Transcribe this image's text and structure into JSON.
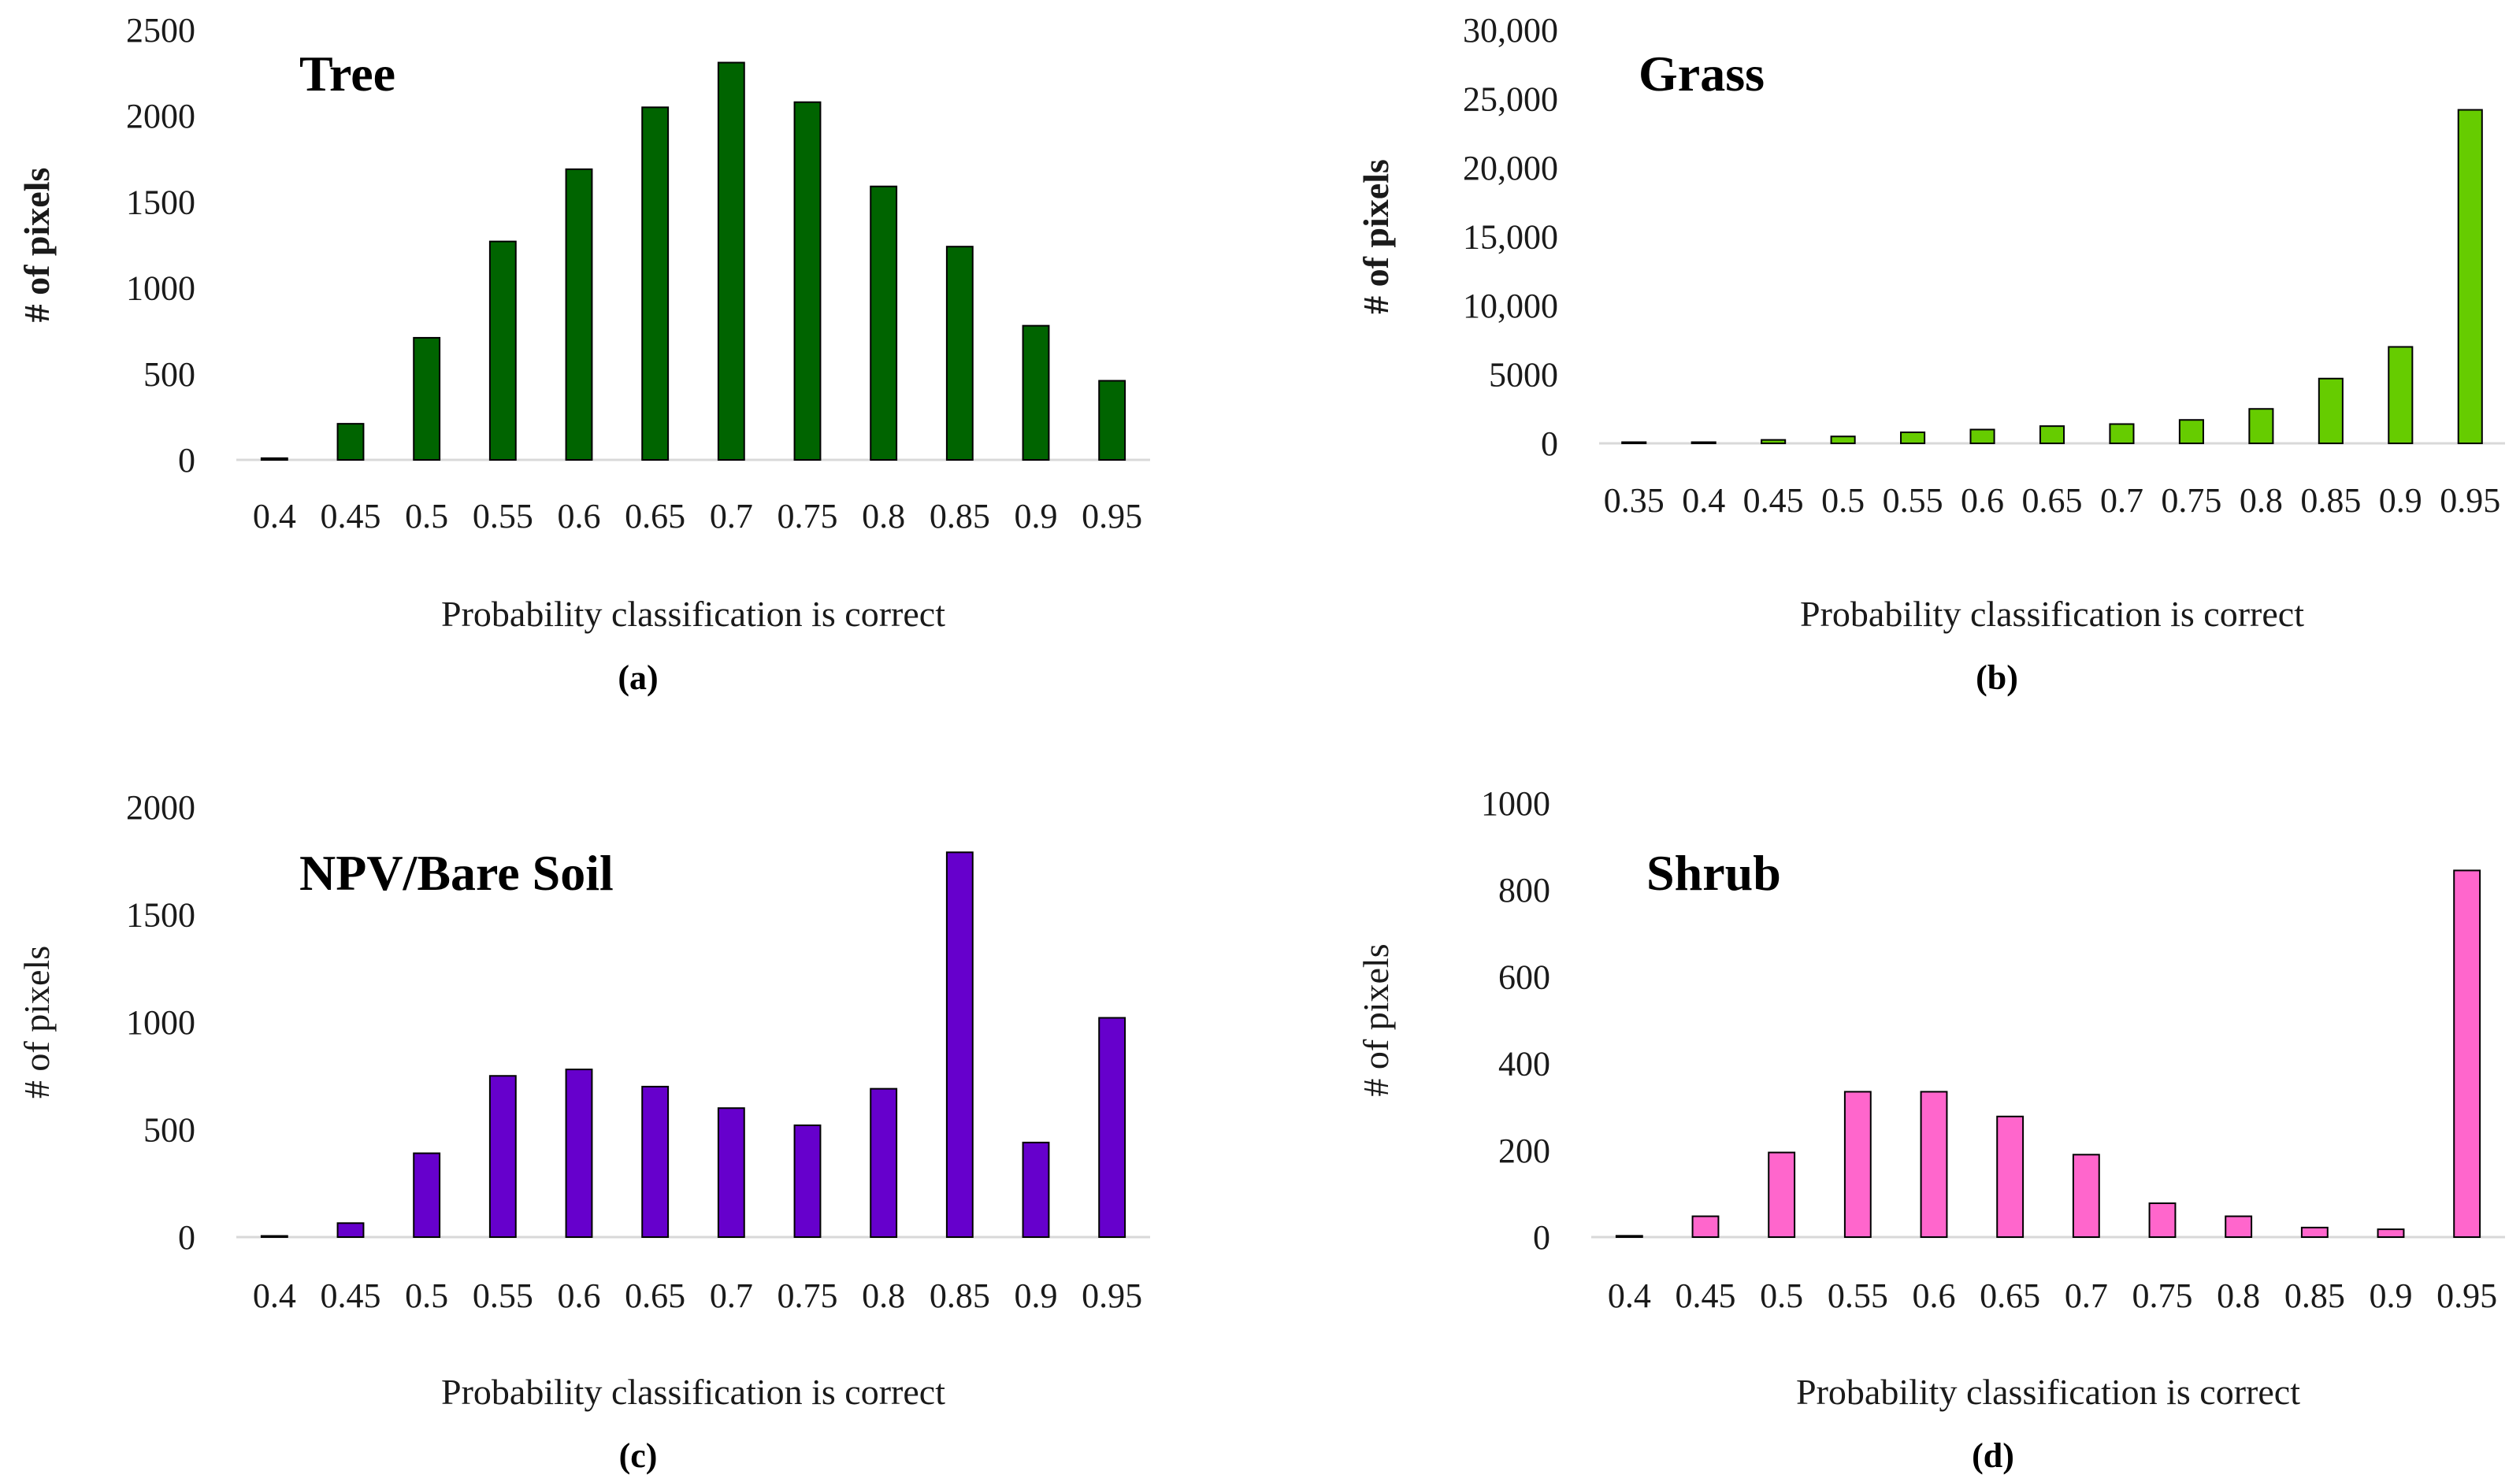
{
  "chart_data": [
    {
      "type": "bar",
      "title": "Tree",
      "panel_label": "(a)",
      "xlabel": "Probability classification is correct",
      "ylabel": "# of pixels",
      "ylabel_bold": true,
      "ylim": [
        0,
        2500
      ],
      "yticks": [
        0,
        500,
        1000,
        1500,
        2000,
        2500
      ],
      "ytick_labels": [
        "0",
        "500",
        "1000",
        "1500",
        "2000",
        "2500"
      ],
      "categories": [
        "0.4",
        "0.45",
        "0.5",
        "0.55",
        "0.6",
        "0.65",
        "0.7",
        "0.75",
        "0.8",
        "0.85",
        "0.9",
        "0.95"
      ],
      "values": [
        10,
        210,
        710,
        1270,
        1690,
        2050,
        2310,
        2080,
        1590,
        1240,
        780,
        460
      ],
      "color": "#006400"
    },
    {
      "type": "bar",
      "title": "Grass",
      "panel_label": "(b)",
      "xlabel": "Probability classification is correct",
      "ylabel": "# of pixels",
      "ylabel_bold": true,
      "ylim": [
        0,
        30000
      ],
      "yticks": [
        0,
        5000,
        10000,
        15000,
        20000,
        25000,
        30000
      ],
      "ytick_labels": [
        "0",
        "5000",
        "10,000",
        "15,000",
        "20,000",
        "25,000",
        "30,000"
      ],
      "categories": [
        "0.35",
        "0.4",
        "0.45",
        "0.5",
        "0.55",
        "0.6",
        "0.65",
        "0.7",
        "0.75",
        "0.8",
        "0.85",
        "0.9",
        "0.95"
      ],
      "values": [
        50,
        80,
        250,
        500,
        800,
        1000,
        1250,
        1400,
        1700,
        2500,
        4700,
        7000,
        24200
      ],
      "color": "#66CC00"
    },
    {
      "type": "bar",
      "title": "NPV/Bare Soil",
      "panel_label": "(c)",
      "xlabel": "Probability classification is correct",
      "ylabel": "# of pixels",
      "ylabel_bold": false,
      "ylim": [
        0,
        2000
      ],
      "yticks": [
        0,
        500,
        1000,
        1500,
        2000
      ],
      "ytick_labels": [
        "0",
        "500",
        "1000",
        "1500",
        "2000"
      ],
      "categories": [
        "0.4",
        "0.45",
        "0.5",
        "0.55",
        "0.6",
        "0.65",
        "0.7",
        "0.75",
        "0.8",
        "0.85",
        "0.9",
        "0.95"
      ],
      "values": [
        5,
        65,
        390,
        750,
        780,
        700,
        600,
        520,
        690,
        1790,
        440,
        1020
      ],
      "color": "#6600CC"
    },
    {
      "type": "bar",
      "title": "Shrub",
      "panel_label": "(d)",
      "xlabel": "Probability classification is correct",
      "ylabel": "# of pixels",
      "ylabel_bold": false,
      "ylim": [
        0,
        1000
      ],
      "yticks": [
        0,
        200,
        400,
        600,
        800,
        1000
      ],
      "ytick_labels": [
        "0",
        "200",
        "400",
        "600",
        "800",
        "1000"
      ],
      "categories": [
        "0.4",
        "0.45",
        "0.5",
        "0.55",
        "0.6",
        "0.65",
        "0.7",
        "0.75",
        "0.8",
        "0.85",
        "0.9",
        "0.95"
      ],
      "values": [
        3,
        48,
        195,
        335,
        335,
        278,
        190,
        78,
        48,
        22,
        18,
        845
      ],
      "color": "#FF66CC"
    }
  ]
}
